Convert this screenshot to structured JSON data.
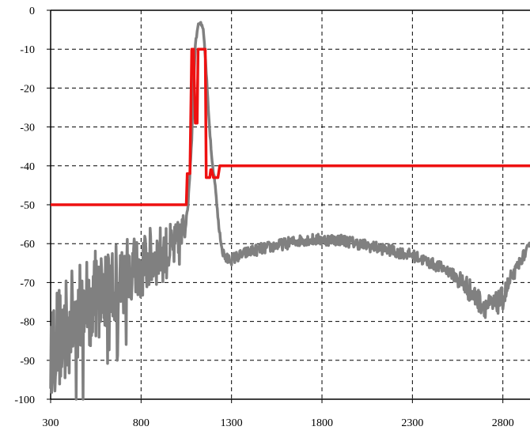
{
  "chart_data": {
    "type": "line",
    "title": "",
    "xlabel": "",
    "ylabel": "",
    "xlim": [
      300,
      2950
    ],
    "ylim": [
      -100,
      0
    ],
    "x_ticks": [
      300,
      800,
      1300,
      1800,
      2300,
      2800
    ],
    "y_ticks": [
      0,
      -10,
      -20,
      -30,
      -40,
      -50,
      -60,
      -70,
      -80,
      -90,
      -100
    ],
    "x_tick_labels": [
      "300",
      "800",
      "1300",
      "1800",
      "2300",
      "2800"
    ],
    "y_tick_labels": [
      "0",
      "-10",
      "-20",
      "-30",
      "-40",
      "-50",
      "-60",
      "-70",
      "-80",
      "-90",
      "-100"
    ],
    "grid": true,
    "legend": "none",
    "series": [
      {
        "color": "#808080",
        "x": [
          300,
          350,
          400,
          450,
          500,
          550,
          600,
          650,
          700,
          750,
          800,
          850,
          900,
          950,
          1000,
          1030,
          1060,
          1080,
          1090,
          1100,
          1110,
          1120,
          1130,
          1140,
          1150,
          1160,
          1175,
          1190,
          1210,
          1230,
          1250,
          1270,
          1300,
          1400,
          1500,
          1600,
          1700,
          1800,
          1900,
          2000,
          2100,
          2200,
          2300,
          2400,
          2500,
          2550,
          2600,
          2650,
          2700,
          2750,
          2800,
          2850,
          2900,
          2950
        ],
        "y": [
          -86,
          -84,
          -80,
          -78,
          -75,
          -73,
          -72,
          -70,
          -69,
          -67,
          -66,
          -64,
          -63,
          -62,
          -61,
          -58,
          -50,
          -33,
          -20,
          -9,
          -5,
          -3,
          -3,
          -4,
          -8,
          -16,
          -28,
          -38,
          -45,
          -56,
          -62,
          -64,
          -64,
          -62,
          -61,
          -60,
          -59,
          -59,
          -59,
          -60,
          -61,
          -62,
          -63,
          -65,
          -67,
          -69,
          -71,
          -74,
          -76,
          -76,
          -74,
          -69,
          -64,
          -61
        ]
      },
      {
        "color": "#ee1111",
        "x": [
          300,
          1050,
          1055,
          1070,
          1080,
          1090,
          1100,
          1110,
          1115,
          1120,
          1150,
          1155,
          1160,
          1170,
          1180,
          1185,
          1190,
          1200,
          1225,
          1235,
          2950
        ],
        "y": [
          -50,
          -50,
          -42,
          -42,
          -10,
          -10,
          -29,
          -29,
          -10,
          -10,
          -10,
          -10,
          -43,
          -43,
          -43,
          -41,
          -41,
          -43,
          -43,
          -40,
          -40
        ]
      }
    ]
  }
}
